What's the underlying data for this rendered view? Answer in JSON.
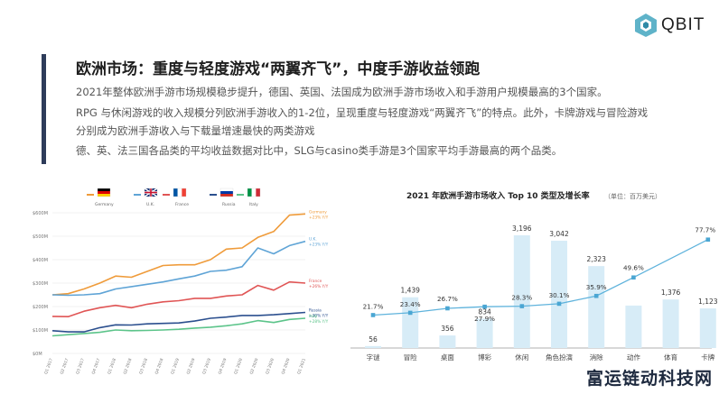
{
  "logo": {
    "text": "QBIT"
  },
  "header": {
    "title": "欧洲市场：重度与轻度游戏“两翼齐飞”，中度手游收益领跑",
    "paragraphs": [
      "2021年整体欧洲手游市场规模稳步提升，德国、英国、法国成为欧洲手游市场收入和手游用户规模最高的3个国家。",
      "RPG 与休闲游戏的收入规模分列欧洲手游收入的1-2位，呈现重度与轻度游戏“两翼齐飞”的特点。此外，卡牌游戏与冒险游戏",
      "分别成为欧洲手游收入与下载量增速最快的两类游戏",
      "德、英、法三国各品类的平均收益数据对比中，SLG与casino类手游是3个国家平均手游最高的两个品类。"
    ]
  },
  "watermark": "富运链动科技网",
  "chart_data": [
    {
      "type": "line",
      "title": "",
      "legend": [
        "Germany",
        "U.K.",
        "France",
        "Russia",
        "Italy"
      ],
      "y_ticks": [
        "$0M",
        "$100M",
        "$200M",
        "$300M",
        "$400M",
        "$500M",
        "$600M"
      ],
      "ylim": [
        0,
        600
      ],
      "x": [
        "Q1 2017",
        "Q2 2017",
        "Q3 2017",
        "Q4 2017",
        "Q1 2018",
        "Q2 2018",
        "Q3 2018",
        "Q4 2018",
        "Q1 2019",
        "Q2 2019",
        "Q3 2019",
        "Q4 2019",
        "Q1 2020",
        "Q2 2020",
        "Q3 2020",
        "Q4 2020",
        "Q1 2021"
      ],
      "series": [
        {
          "name": "Germany",
          "color": "#ef9b3a",
          "end_label": [
            "Germany",
            "+23% Y/Y"
          ],
          "values": [
            250,
            255,
            275,
            300,
            330,
            325,
            350,
            375,
            378,
            378,
            400,
            445,
            450,
            495,
            520,
            590,
            595
          ]
        },
        {
          "name": "U.K.",
          "color": "#5fa4d6",
          "end_label": [
            "U.K.",
            "+23% Y/Y"
          ],
          "values": [
            250,
            248,
            250,
            255,
            275,
            285,
            295,
            305,
            318,
            330,
            350,
            355,
            370,
            450,
            425,
            460,
            478
          ]
        },
        {
          "name": "France",
          "color": "#e05555",
          "end_label": [
            "France",
            "+26% Y/Y"
          ],
          "values": [
            158,
            157,
            180,
            195,
            205,
            195,
            210,
            220,
            225,
            235,
            235,
            245,
            250,
            290,
            270,
            305,
            300
          ]
        },
        {
          "name": "Russia",
          "color": "#2b4f8e",
          "end_label": [
            "Russia",
            "+30% Y/Y"
          ],
          "values": [
            97,
            92,
            92,
            110,
            122,
            121,
            126,
            128,
            130,
            138,
            150,
            155,
            162,
            162,
            165,
            170,
            175
          ]
        },
        {
          "name": "Italy",
          "color": "#5cc48a",
          "end_label": [
            "Italy",
            "+28% Y/Y"
          ],
          "values": [
            75,
            80,
            85,
            90,
            100,
            97,
            98,
            100,
            103,
            108,
            112,
            118,
            126,
            140,
            132,
            145,
            150
          ]
        }
      ]
    },
    {
      "type": "bar",
      "title": "2021 年欧洲手游市场收入 Top 10 类型及增长率",
      "unit_label": "（单位：百万美元）",
      "categories": [
        "字谜",
        "冒险",
        "桌面",
        "博彩",
        "休闲",
        "角色扮演",
        "消除",
        "动作",
        "体育",
        "卡牌"
      ],
      "values": [
        56,
        1439,
        356,
        834,
        3196,
        3042,
        2323,
        1204,
        1376,
        1123
      ],
      "value_labels": [
        "56",
        "1,439",
        "356",
        "834",
        "3,196",
        "3,042",
        "2,323",
        "",
        "1,376",
        "1,123"
      ],
      "growth": [
        21.7,
        23.4,
        26.7,
        27.9,
        28.3,
        30.1,
        35.9,
        49.6,
        null,
        77.7
      ],
      "growth_labels": [
        "21.7%",
        "23.4%",
        "26.7%",
        "27.9%",
        "28.3%",
        "30.1%",
        "35.9%",
        "49.6%",
        "",
        "77.7%"
      ],
      "ylim": [
        0,
        3400
      ],
      "growth_lim": [
        0,
        90
      ]
    }
  ],
  "colors": {
    "bar": "#d7ecf7",
    "line": "#5fb3dc",
    "marker": "#4aa6d3",
    "accent": "#2e3c5a"
  }
}
